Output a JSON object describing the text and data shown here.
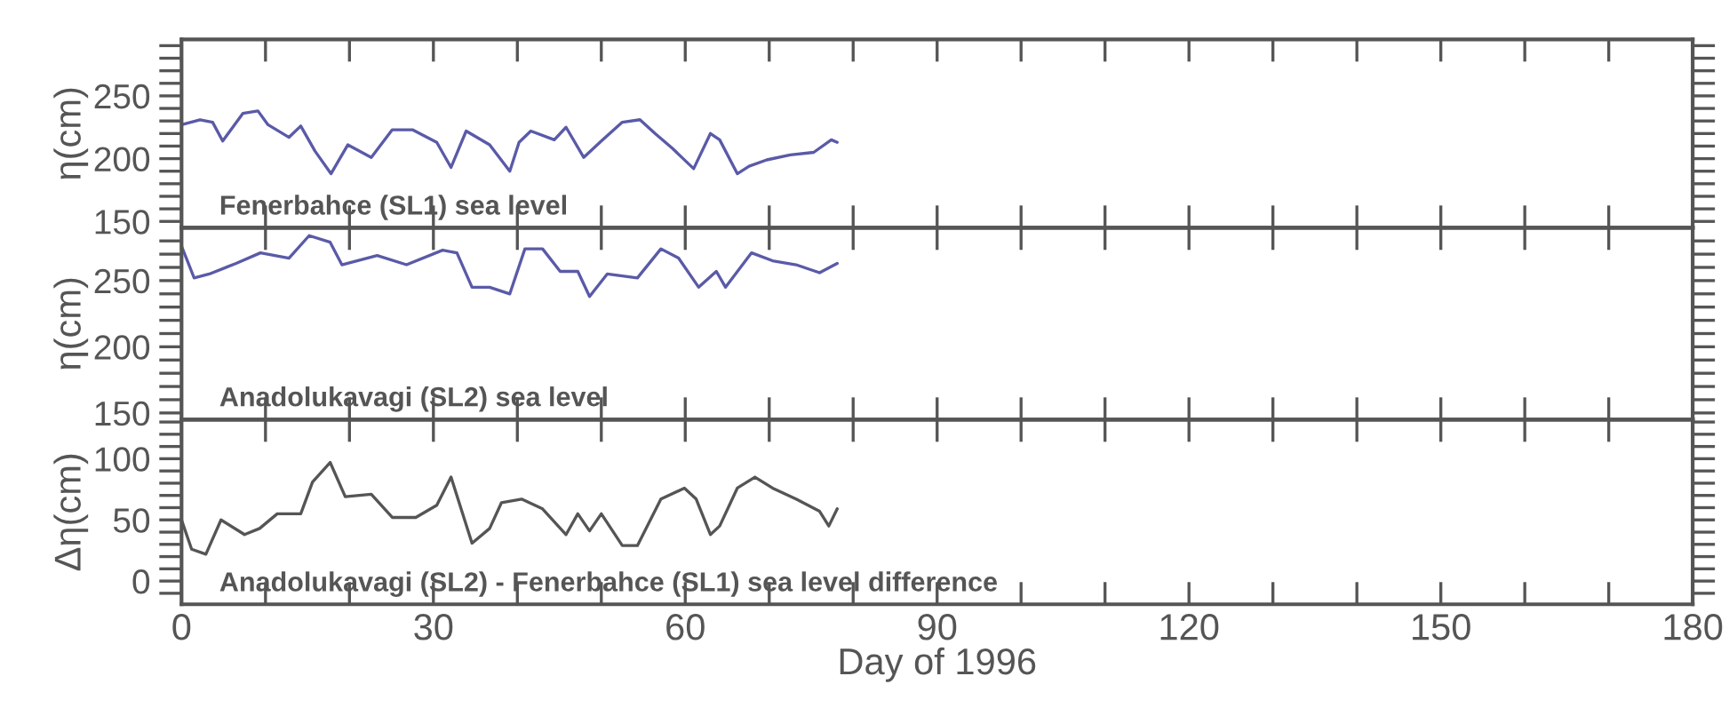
{
  "chart_data": [
    {
      "type": "line",
      "ylabel": "η(cm)",
      "tick_labels": "y",
      "grid": false,
      "xlim": [
        0,
        180
      ],
      "xticks": [
        {
          "value": 0,
          "label": null
        },
        {
          "value": 10,
          "label": null
        },
        {
          "value": 20,
          "label": null
        },
        {
          "value": 30,
          "label": null
        },
        {
          "value": 40,
          "label": null
        },
        {
          "value": 50,
          "label": null
        },
        {
          "value": 60,
          "label": null
        },
        {
          "value": 70,
          "label": null
        },
        {
          "value": 80,
          "label": null
        },
        {
          "value": 90,
          "label": null
        },
        {
          "value": 100,
          "label": null
        },
        {
          "value": 110,
          "label": null
        },
        {
          "value": 120,
          "label": null
        },
        {
          "value": 130,
          "label": null
        },
        {
          "value": 140,
          "label": null
        },
        {
          "value": 150,
          "label": null
        },
        {
          "value": 160,
          "label": null
        },
        {
          "value": 170,
          "label": null
        },
        {
          "value": 180,
          "label": null
        }
      ],
      "ylim": [
        145,
        295
      ],
      "yticks": [
        150,
        {
          "value": 160,
          "label": null
        },
        {
          "value": 170,
          "label": null
        },
        {
          "value": 180,
          "label": null
        },
        {
          "value": 190,
          "label": null
        },
        200,
        {
          "value": 210,
          "label": null
        },
        {
          "value": 220,
          "label": null
        },
        {
          "value": 230,
          "label": null
        },
        {
          "value": 240,
          "label": null
        },
        250,
        {
          "value": 260,
          "label": null
        },
        {
          "value": 270,
          "label": null
        },
        {
          "value": 280,
          "label": null
        },
        {
          "value": 290,
          "label": null
        }
      ],
      "annotations": [
        "Fenerbahce (SL1) sea level"
      ],
      "series": [
        {
          "color": "#5a5aa8",
          "x": [
            0,
            2.2,
            3.7,
            4.9,
            6.1,
            7.3,
            9.1,
            10.3,
            12.8,
            14.2,
            15.9,
            17.8,
            19.8,
            22.6,
            25.1,
            27.5,
            30.4,
            32.1,
            33.9,
            36.7,
            39.1,
            40.2,
            41.6,
            44.4,
            45.8,
            47.9,
            50.0,
            52.5,
            54.6,
            56.4,
            58.5,
            61.0,
            63.0,
            64.1,
            66.2,
            67.6,
            69.7,
            72.5,
            75.3,
            77.4,
            78.1
          ],
          "values": [
            227,
            231,
            229,
            214,
            225,
            236,
            238,
            227,
            217,
            226,
            206,
            188,
            211,
            201,
            223,
            223,
            213,
            193,
            222,
            211,
            190,
            213,
            222,
            215,
            225,
            201,
            214,
            229,
            231,
            220,
            208,
            192,
            220,
            215,
            188,
            194,
            199,
            203,
            205,
            215,
            213
          ]
        }
      ]
    },
    {
      "type": "line",
      "ylabel": "η(cm)",
      "tick_labels": "y",
      "grid": false,
      "xlim": [
        0,
        180
      ],
      "xticks": [
        {
          "value": 0,
          "label": null
        },
        {
          "value": 10,
          "label": null
        },
        {
          "value": 20,
          "label": null
        },
        {
          "value": 30,
          "label": null
        },
        {
          "value": 40,
          "label": null
        },
        {
          "value": 50,
          "label": null
        },
        {
          "value": 60,
          "label": null
        },
        {
          "value": 70,
          "label": null
        },
        {
          "value": 80,
          "label": null
        },
        {
          "value": 90,
          "label": null
        },
        {
          "value": 100,
          "label": null
        },
        {
          "value": 110,
          "label": null
        },
        {
          "value": 120,
          "label": null
        },
        {
          "value": 130,
          "label": null
        },
        {
          "value": 140,
          "label": null
        },
        {
          "value": 150,
          "label": null
        },
        {
          "value": 160,
          "label": null
        },
        {
          "value": 170,
          "label": null
        },
        {
          "value": 180,
          "label": null
        }
      ],
      "ylim": [
        145,
        290
      ],
      "yticks": [
        150,
        {
          "value": 160,
          "label": null
        },
        {
          "value": 170,
          "label": null
        },
        {
          "value": 180,
          "label": null
        },
        {
          "value": 190,
          "label": null
        },
        200,
        {
          "value": 210,
          "label": null
        },
        {
          "value": 220,
          "label": null
        },
        {
          "value": 230,
          "label": null
        },
        {
          "value": 240,
          "label": null
        },
        250,
        {
          "value": 260,
          "label": null
        },
        {
          "value": 270,
          "label": null
        },
        {
          "value": 280,
          "label": null
        }
      ],
      "annotations": [
        "Anadolukavagi (SL2) sea level"
      ],
      "series": [
        {
          "color": "#5a5aa8",
          "x": [
            0,
            1.5,
            3.3,
            6.5,
            9.4,
            12.8,
            15.2,
            17.7,
            19.1,
            23.3,
            26.8,
            31.1,
            32.8,
            34.6,
            36.7,
            39.1,
            40.9,
            43.0,
            45.1,
            47.2,
            48.6,
            50.7,
            54.3,
            57.1,
            59.2,
            61.6,
            63.7,
            64.8,
            67.9,
            70.4,
            73.2,
            76.0,
            78.1
          ],
          "values": [
            276,
            252,
            255,
            263,
            271,
            267,
            284,
            279,
            262,
            269,
            262,
            273,
            271,
            245,
            245,
            240,
            274,
            274,
            257,
            257,
            238,
            255,
            252,
            274,
            267,
            245,
            257,
            245,
            271,
            265,
            262,
            256,
            263
          ]
        }
      ]
    },
    {
      "type": "line",
      "ylabel": "Δη(cm)",
      "xlabel": "Day of 1996",
      "grid": false,
      "xlim": [
        0,
        180
      ],
      "xticks": [
        0,
        {
          "value": 10,
          "label": null
        },
        {
          "value": 20,
          "label": null
        },
        30,
        {
          "value": 40,
          "label": null
        },
        {
          "value": 50,
          "label": null
        },
        60,
        {
          "value": 70,
          "label": null
        },
        {
          "value": 80,
          "label": null
        },
        90,
        {
          "value": 100,
          "label": null
        },
        {
          "value": 110,
          "label": null
        },
        120,
        {
          "value": 130,
          "label": null
        },
        {
          "value": 140,
          "label": null
        },
        150,
        {
          "value": 160,
          "label": null
        },
        {
          "value": 170,
          "label": null
        },
        180
      ],
      "ylim": [
        -19,
        132
      ],
      "yticks": [
        {
          "value": -10,
          "label": null
        },
        0,
        {
          "value": 10,
          "label": null
        },
        {
          "value": 20,
          "label": null
        },
        {
          "value": 30,
          "label": null
        },
        {
          "value": 40,
          "label": null
        },
        50,
        {
          "value": 60,
          "label": null
        },
        {
          "value": 70,
          "label": null
        },
        {
          "value": 80,
          "label": null
        },
        {
          "value": 90,
          "label": null
        },
        100,
        {
          "value": 110,
          "label": null
        },
        {
          "value": 120,
          "label": null
        },
        {
          "value": 130,
          "label": null
        }
      ],
      "annotations": [
        "Anadolukavagi (SL2) - Fenerbahce (SL1) sea level difference"
      ],
      "series": [
        {
          "color": "#555555",
          "x": [
            0,
            1.2,
            2.9,
            4.7,
            7.5,
            9.3,
            11.4,
            14.2,
            15.6,
            17.7,
            19.5,
            22.6,
            25.1,
            27.9,
            30.4,
            32.1,
            34.6,
            36.7,
            38.1,
            40.5,
            43.0,
            45.8,
            47.2,
            48.6,
            50.0,
            52.5,
            54.3,
            57.1,
            59.9,
            61.3,
            63.0,
            64.1,
            66.2,
            68.3,
            70.4,
            73.2,
            76.0,
            77.1,
            78.1
          ],
          "values": [
            50,
            26,
            22,
            50,
            38,
            43,
            55,
            55,
            81,
            97,
            69,
            71,
            52,
            52,
            62,
            85,
            31,
            43,
            64,
            67,
            59,
            38,
            55,
            41,
            55,
            29,
            29,
            67,
            76,
            67,
            38,
            45,
            76,
            85,
            76,
            67,
            57,
            45,
            59
          ]
        }
      ]
    }
  ]
}
